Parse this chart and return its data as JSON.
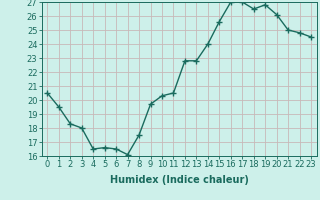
{
  "x": [
    0,
    1,
    2,
    3,
    4,
    5,
    6,
    7,
    8,
    9,
    10,
    11,
    12,
    13,
    14,
    15,
    16,
    17,
    18,
    19,
    20,
    21,
    22,
    23
  ],
  "y": [
    20.5,
    19.5,
    18.3,
    18.0,
    16.5,
    16.6,
    16.5,
    16.1,
    17.5,
    19.7,
    20.3,
    20.5,
    22.8,
    22.8,
    24.0,
    25.6,
    27.0,
    27.0,
    26.5,
    26.8,
    26.1,
    25.0,
    24.8,
    24.5
  ],
  "xlabel": "Humidex (Indice chaleur)",
  "ylim": [
    16,
    27
  ],
  "xlim": [
    -0.5,
    23.5
  ],
  "yticks": [
    16,
    17,
    18,
    19,
    20,
    21,
    22,
    23,
    24,
    25,
    26,
    27
  ],
  "xticks": [
    0,
    1,
    2,
    3,
    4,
    5,
    6,
    7,
    8,
    9,
    10,
    11,
    12,
    13,
    14,
    15,
    16,
    17,
    18,
    19,
    20,
    21,
    22,
    23
  ],
  "line_color": "#1a6b5e",
  "marker": "+",
  "bg_color": "#cdf0ea",
  "grid_color": "#c8b8b8",
  "axis_bg": "#cdf0ea",
  "label_fontsize": 7,
  "tick_fontsize": 6,
  "linewidth": 1.0,
  "markersize": 4,
  "markeredgewidth": 1.0
}
